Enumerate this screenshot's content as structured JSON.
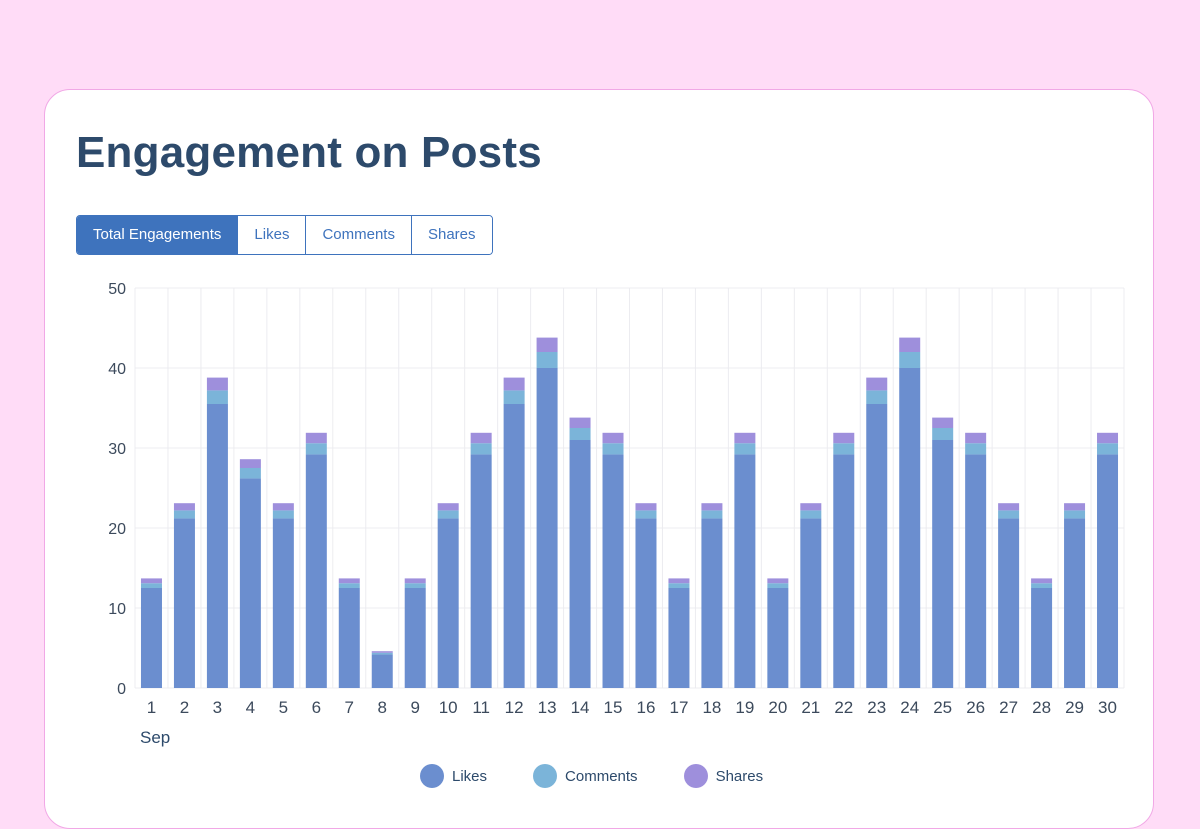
{
  "page": {
    "title": "Engagement on Posts",
    "tabs": [
      "Total Engagements",
      "Likes",
      "Comments",
      "Shares"
    ],
    "active_tab": 0
  },
  "colors": {
    "likes": "#6b8ecf",
    "comments": "#7bb4d9",
    "shares": "#9e8fdc",
    "grid": "#ececf0",
    "axis_text": "#3c4a5c"
  },
  "chart_data": {
    "type": "bar",
    "stacked": true,
    "title": "Engagement on Posts",
    "xlabel": "Sep",
    "ylabel": "",
    "ylim": [
      0,
      50
    ],
    "yticks": [
      0,
      10,
      20,
      30,
      40,
      50
    ],
    "grid": true,
    "legend": "bottom",
    "categories": [
      "1",
      "2",
      "3",
      "4",
      "5",
      "6",
      "7",
      "8",
      "9",
      "10",
      "11",
      "12",
      "13",
      "14",
      "15",
      "16",
      "17",
      "18",
      "19",
      "20",
      "21",
      "22",
      "23",
      "24",
      "25",
      "26",
      "27",
      "28",
      "29",
      "30"
    ],
    "series": [
      {
        "name": "Likes",
        "values": [
          12.5,
          21.2,
          35.5,
          26.2,
          21.2,
          29.2,
          12.5,
          4.2,
          12.5,
          21.2,
          29.2,
          35.5,
          40,
          31,
          29.2,
          21.2,
          12.5,
          21.2,
          29.2,
          12.5,
          21.2,
          29.2,
          35.5,
          40,
          31,
          29.2,
          21.2,
          12.5,
          21.2,
          29.2
        ]
      },
      {
        "name": "Comments",
        "values": [
          0.6,
          1,
          1.7,
          1.3,
          1,
          1.4,
          0.6,
          0.2,
          0.6,
          1,
          1.4,
          1.7,
          2,
          1.5,
          1.4,
          1,
          0.6,
          1,
          1.4,
          0.6,
          1,
          1.4,
          1.7,
          2,
          1.5,
          1.4,
          1,
          0.6,
          1,
          1.4
        ]
      },
      {
        "name": "Shares",
        "values": [
          0.6,
          0.9,
          1.6,
          1.1,
          0.9,
          1.3,
          0.6,
          0.2,
          0.6,
          0.9,
          1.3,
          1.6,
          1.8,
          1.3,
          1.3,
          0.9,
          0.6,
          0.9,
          1.3,
          0.6,
          0.9,
          1.3,
          1.6,
          1.8,
          1.3,
          1.3,
          0.9,
          0.6,
          0.9,
          1.3
        ]
      }
    ]
  }
}
